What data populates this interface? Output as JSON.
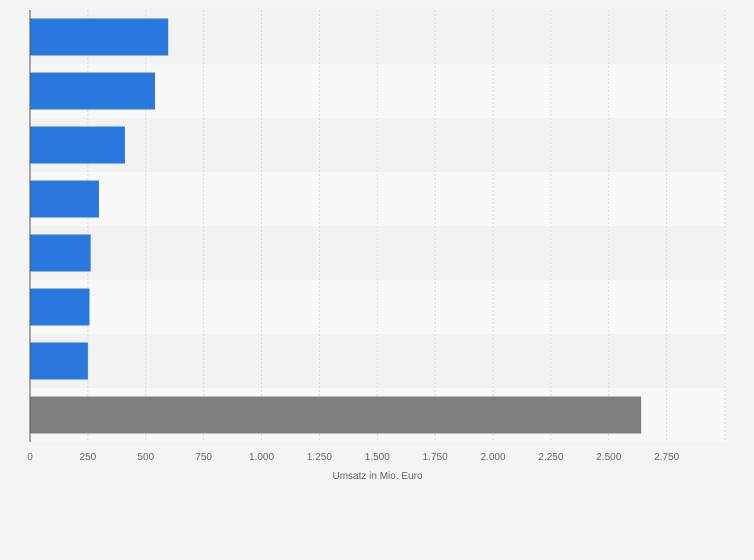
{
  "chart_data": {
    "type": "bar",
    "orientation": "horizontal",
    "categories": [
      "",
      "",
      "",
      "",
      "",
      "",
      "",
      ""
    ],
    "values": [
      597,
      540,
      410,
      298,
      262,
      257,
      250,
      2640
    ],
    "bar_colors": [
      "#2a78de",
      "#2a78de",
      "#2a78de",
      "#2a78de",
      "#2a78de",
      "#2a78de",
      "#2a78de",
      "#808080"
    ],
    "title": "",
    "xlabel": "Umsatz in Mio. Euro",
    "ylabel": "",
    "xlim": [
      0,
      3000
    ],
    "x_ticks": [
      0,
      250,
      500,
      750,
      1000,
      1250,
      1500,
      1750,
      2000,
      2250,
      2500,
      2750
    ],
    "x_tick_labels": [
      "0",
      "250",
      "500",
      "750",
      "1.000",
      "1.250",
      "1.500",
      "1.750",
      "2.000",
      "2.250",
      "2.500",
      "2.750"
    ],
    "grid": true,
    "legend": "none",
    "colors": {
      "background": "#f4f4f4",
      "band_dark": "#f2f2f2",
      "band_light": "#f8f8f8",
      "grid": "#d9d9d9",
      "axis": "#555555",
      "primary_bar": "#2a78de",
      "highlight_bar": "#808080"
    }
  }
}
